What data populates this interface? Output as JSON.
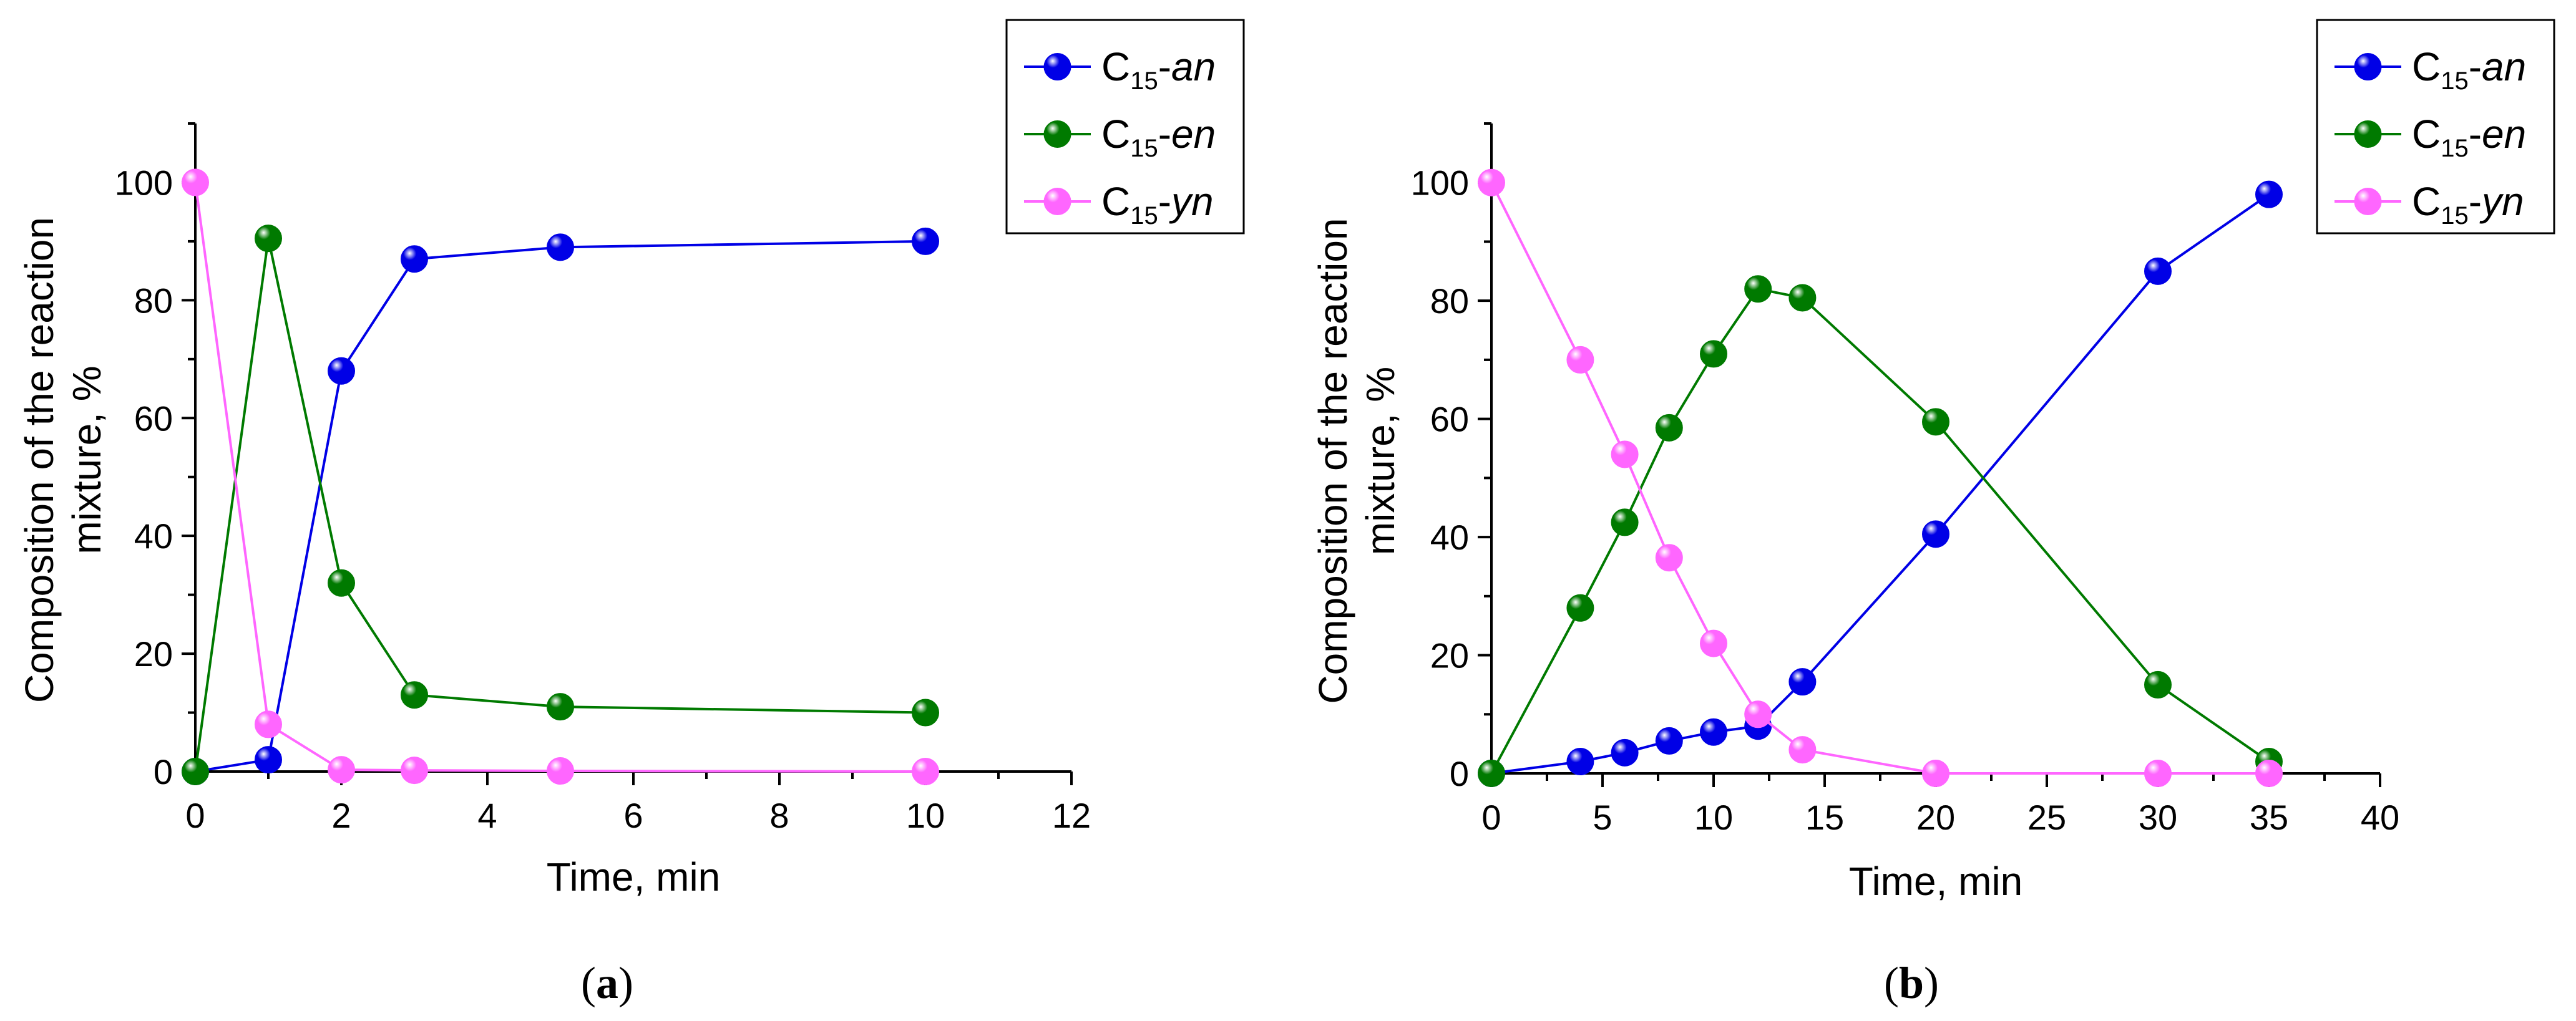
{
  "chart_data": [
    {
      "type": "line",
      "panel": "a",
      "caption": {
        "open": "(",
        "letter": "a",
        "close": ")"
      },
      "xlabel": "Time, min",
      "ylabel_lines": [
        "Composition of the reaction",
        "mixture, %"
      ],
      "xlim": [
        0,
        12
      ],
      "ylim": [
        0,
        110
      ],
      "xticks": [
        0,
        2,
        4,
        6,
        8,
        10,
        12
      ],
      "yticks": [
        0,
        20,
        40,
        60,
        80,
        100
      ],
      "legend_position": "top-right",
      "series": [
        {
          "key": "an",
          "prefix": "C",
          "sub": "15",
          "suffix": "-an",
          "color": "#0000e6",
          "x": [
            0,
            1,
            2,
            3,
            5,
            10
          ],
          "values": [
            0,
            2,
            68,
            87,
            89,
            90
          ]
        },
        {
          "key": "en",
          "prefix": "C",
          "sub": "15",
          "suffix": "-en",
          "color": "#007a00",
          "x": [
            0,
            1,
            2,
            3,
            5,
            10
          ],
          "values": [
            0,
            90.5,
            32,
            13,
            11,
            10
          ]
        },
        {
          "key": "yn",
          "prefix": "C",
          "sub": "15",
          "suffix": "-yn",
          "color": "#ff66ff",
          "x": [
            0,
            1,
            2,
            3,
            5,
            10
          ],
          "values": [
            100,
            8,
            0.3,
            0.2,
            0.1,
            0
          ]
        }
      ]
    },
    {
      "type": "line",
      "panel": "b",
      "caption": {
        "open": "(",
        "letter": "b",
        "close": ")"
      },
      "xlabel": "Time, min",
      "ylabel_lines": [
        "Composition of the reaction",
        "mixture, %"
      ],
      "xlim": [
        0,
        40
      ],
      "ylim": [
        0,
        110
      ],
      "xticks": [
        0,
        5,
        10,
        15,
        20,
        25,
        30,
        35,
        40
      ],
      "yticks": [
        0,
        20,
        40,
        60,
        80,
        100
      ],
      "legend_position": "top-right",
      "series": [
        {
          "key": "an",
          "prefix": "C",
          "sub": "15",
          "suffix": "-an",
          "color": "#0000e6",
          "x": [
            0,
            4,
            6,
            8,
            10,
            12,
            14,
            20,
            30,
            35
          ],
          "values": [
            0,
            2,
            3.5,
            5.5,
            7,
            8,
            15.5,
            40.5,
            85,
            98
          ]
        },
        {
          "key": "en",
          "prefix": "C",
          "sub": "15",
          "suffix": "-en",
          "color": "#007a00",
          "x": [
            0,
            4,
            6,
            8,
            10,
            12,
            14,
            20,
            30,
            35
          ],
          "values": [
            0,
            28,
            42.5,
            58.5,
            71,
            82,
            80.5,
            59.5,
            15,
            2
          ]
        },
        {
          "key": "yn",
          "prefix": "C",
          "sub": "15",
          "suffix": "-yn",
          "color": "#ff66ff",
          "x": [
            0,
            4,
            6,
            8,
            10,
            12,
            14,
            20,
            30,
            35
          ],
          "values": [
            100,
            70,
            54,
            36.5,
            22,
            10,
            4,
            0,
            0,
            0
          ]
        }
      ]
    }
  ]
}
